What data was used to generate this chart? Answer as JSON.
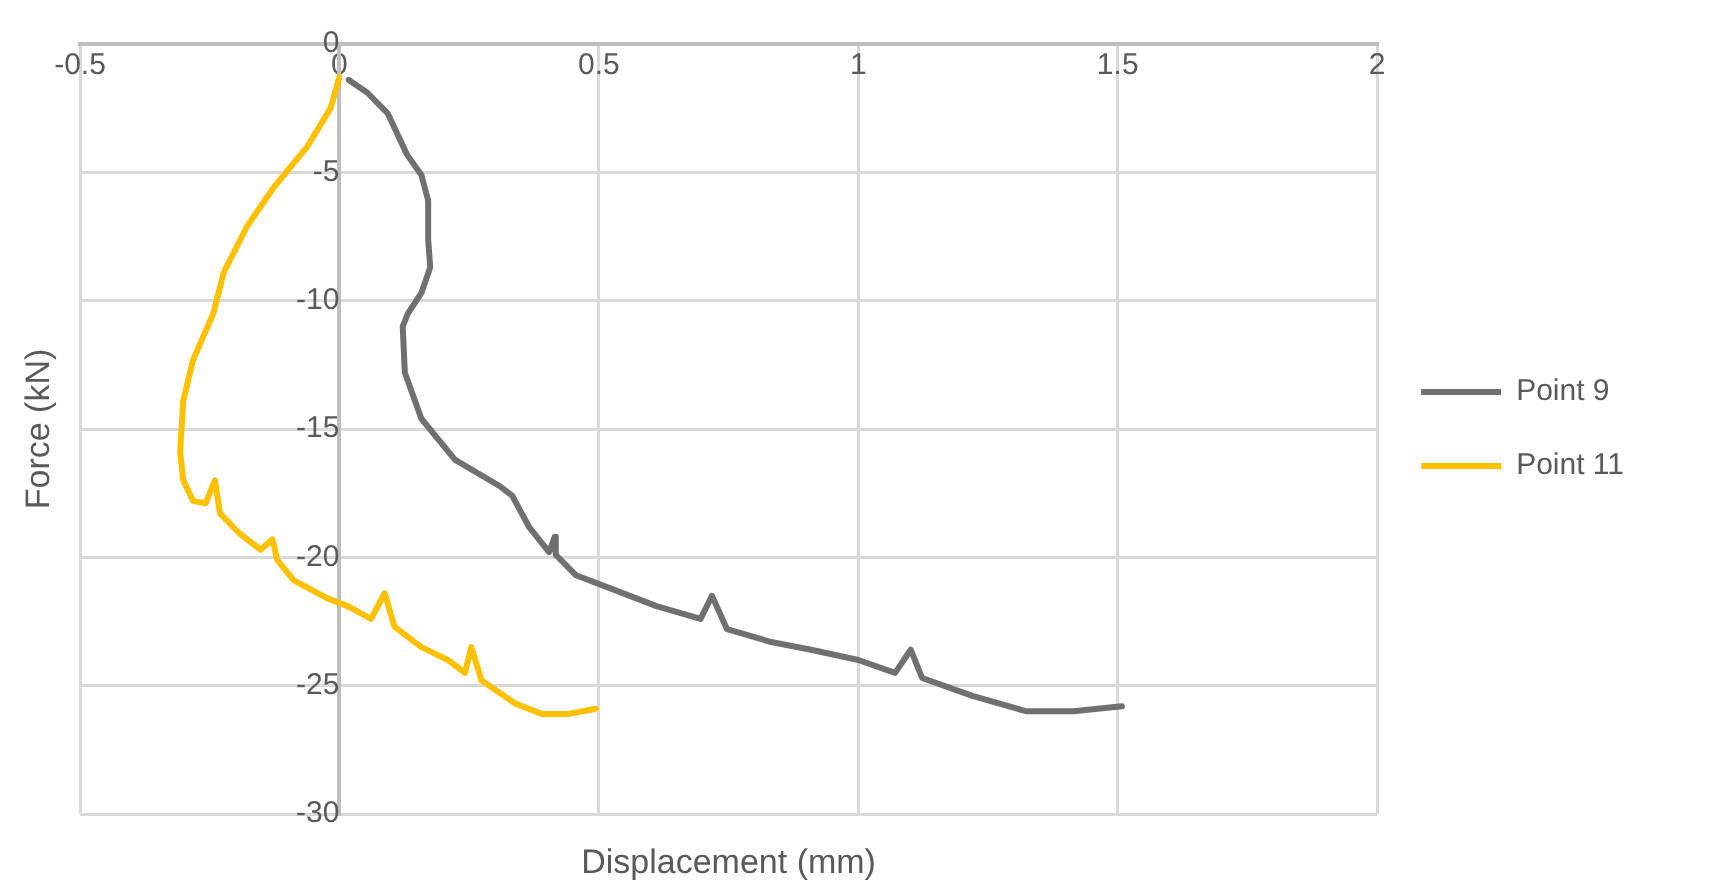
{
  "chart_data": {
    "type": "line",
    "xlabel": "Displacement (mm)",
    "ylabel": "Force (kN)",
    "xlim": [
      -0.5,
      2
    ],
    "xticks": [
      -0.5,
      0,
      0.5,
      1,
      1.5,
      2
    ],
    "ylim": [
      -30,
      0
    ],
    "yticks": [
      -30,
      -25,
      -20,
      -15,
      -10,
      -5,
      0
    ],
    "grid": true,
    "legend": "right",
    "series": [
      {
        "name": "Point 9",
        "color": "#707070",
        "x": [
          0.018,
          0.054,
          0.093,
          0.13,
          0.158,
          0.171,
          0.171,
          0.175,
          0.158,
          0.132,
          0.122,
          0.126,
          0.158,
          0.223,
          0.307,
          0.333,
          0.365,
          0.404,
          0.415,
          0.417,
          0.456,
          0.521,
          0.611,
          0.696,
          0.718,
          0.747,
          0.832,
          0.909,
          1.0,
          1.071,
          1.101,
          1.123,
          1.22,
          1.324,
          1.415,
          1.508
        ],
        "values": [
          -1.4,
          -1.9,
          -2.7,
          -4.3,
          -5.1,
          -6.1,
          -7.6,
          -8.7,
          -9.7,
          -10.5,
          -11.0,
          -12.8,
          -14.6,
          -16.2,
          -17.2,
          -17.6,
          -18.8,
          -19.8,
          -19.2,
          -19.9,
          -20.7,
          -21.2,
          -21.9,
          -22.4,
          -21.5,
          -22.8,
          -23.3,
          -23.6,
          -24.0,
          -24.5,
          -23.6,
          -24.7,
          -25.4,
          -26.0,
          -26.0,
          -25.8
        ]
      },
      {
        "name": "Point 11",
        "color": "#ffc000",
        "x": [
          0.0,
          -0.017,
          -0.062,
          -0.127,
          -0.178,
          -0.223,
          -0.243,
          -0.282,
          -0.301,
          -0.307,
          -0.301,
          -0.282,
          -0.258,
          -0.24,
          -0.23,
          -0.191,
          -0.152,
          -0.129,
          -0.12,
          -0.088,
          -0.023,
          0.016,
          0.061,
          0.087,
          0.106,
          0.158,
          0.209,
          0.242,
          0.254,
          0.274,
          0.339,
          0.39,
          0.442,
          0.494
        ],
        "values": [
          -1.3,
          -2.5,
          -4.0,
          -5.6,
          -7.1,
          -8.9,
          -10.5,
          -12.3,
          -13.9,
          -15.9,
          -17.0,
          -17.8,
          -17.9,
          -17.0,
          -18.3,
          -19.1,
          -19.7,
          -19.3,
          -20.1,
          -20.9,
          -21.6,
          -21.9,
          -22.4,
          -21.4,
          -22.7,
          -23.5,
          -24.0,
          -24.5,
          -23.5,
          -24.8,
          -25.7,
          -26.1,
          -26.1,
          -25.9
        ]
      }
    ]
  }
}
